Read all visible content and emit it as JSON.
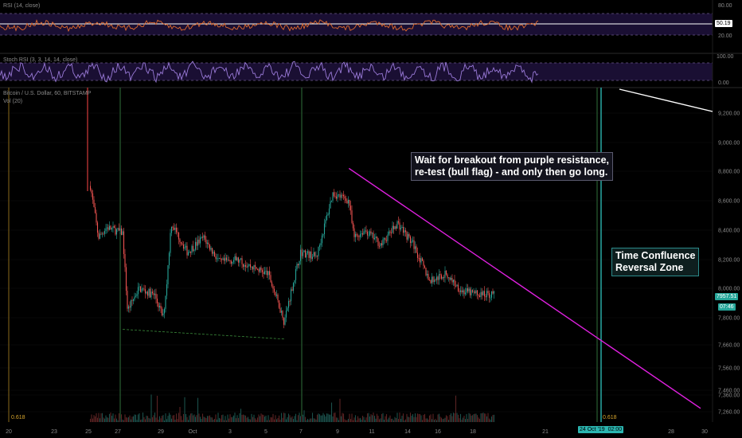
{
  "colors": {
    "background": "#000000",
    "candle_up": "#26a69a",
    "candle_down": "#ef5350",
    "rsi_line": "#e06a2c",
    "stoch_line": "#9a7ad8",
    "band_fill": "#1a0f33",
    "resistance": "#e020e0",
    "vertical_green": "#2f6f3a",
    "vertical_teal": "#2bb5b0",
    "vertical_red": "#d33b3b",
    "axis_text": "#8a8a8a",
    "support_dash": "#3a8a3a"
  },
  "panels": {
    "rsi_label": "RSI (14, close)",
    "stoch_label": "Stoch RSI (3, 3, 14, 14, close)",
    "main_label": "Bitcoin / U.S. Dollar, 60, BITSTAMP",
    "vol_label": "Vol (20)"
  },
  "rsi_axis": [
    "80.00",
    "20.00"
  ],
  "rsi_value": "50.19",
  "stoch_axis": [
    "100.00",
    "0.00"
  ],
  "annotations": {
    "note_line1": "Wait for breakout from purple resistance,",
    "note_line2": "re-test (bull flag) - and only then go long.",
    "zone_line1": "Time Confluence",
    "zone_line2": "Reversal Zone"
  },
  "price_tag": {
    "price": "7957.51",
    "countdown": "07:46"
  },
  "fib_labels": [
    "0.618",
    "0.618"
  ],
  "time_tag": {
    "date": "24 Oct '19",
    "time": "02:00"
  },
  "chart_data": {
    "type": "candlestick",
    "title": "",
    "y_axis_ticks": [
      9200,
      9000,
      8800,
      8600,
      8400,
      8200,
      8000,
      7800,
      7660,
      7560,
      7460,
      7360,
      7260
    ],
    "x_axis_ticks": [
      "20",
      "23",
      "25",
      "27",
      "29",
      "Oct",
      "3",
      "5",
      "7",
      "9",
      "11",
      "14",
      "16",
      "18",
      "21",
      "24 Oct '19",
      "28",
      "30"
    ],
    "series": [
      {
        "name": "BTCUSD",
        "price_path": [
          [
            25,
            8700
          ],
          [
            25.5,
            8350
          ],
          [
            26,
            8420
          ],
          [
            27,
            8380
          ],
          [
            27.3,
            7850
          ],
          [
            28,
            8000
          ],
          [
            29,
            7950
          ],
          [
            29.5,
            7800
          ],
          [
            29.7,
            8000
          ],
          [
            30,
            8450
          ],
          [
            1,
            8250
          ],
          [
            2,
            8350
          ],
          [
            3,
            8180
          ],
          [
            4,
            8200
          ],
          [
            5,
            8150
          ],
          [
            6,
            8100
          ],
          [
            7,
            7780
          ],
          [
            8,
            8250
          ],
          [
            9,
            8220
          ],
          [
            10,
            8650
          ],
          [
            11,
            8600
          ],
          [
            11.3,
            8350
          ],
          [
            12,
            8400
          ],
          [
            13,
            8300
          ],
          [
            14,
            8450
          ],
          [
            15,
            8300
          ],
          [
            16,
            8050
          ],
          [
            17,
            8100
          ],
          [
            18,
            7980
          ],
          [
            19,
            7960
          ],
          [
            20,
            7960
          ]
        ]
      }
    ],
    "resistance_line": {
      "from": [
        11,
        8820
      ],
      "to": [
        29.5,
        7280
      ]
    },
    "support_line": {
      "from": [
        27,
        7740
      ],
      "to": [
        7,
        7690
      ]
    },
    "current_price": 7957.51
  }
}
